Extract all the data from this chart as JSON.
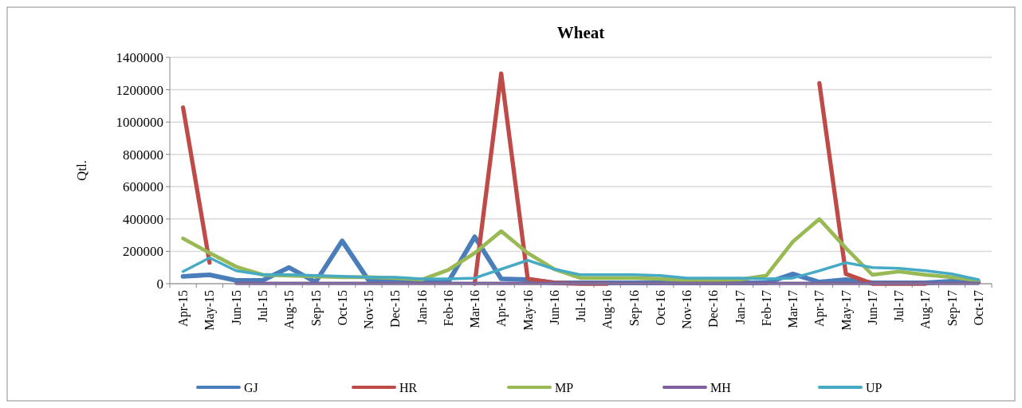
{
  "chart_data": {
    "type": "line",
    "title": "Wheat",
    "ylabel": "Qtl.",
    "categories": [
      "Apr-15",
      "May-15",
      "Jun-15",
      "Jul-15",
      "Aug-15",
      "Sep-15",
      "Oct-15",
      "Nov-15",
      "Dec-15",
      "Jan-16",
      "Feb-16",
      "Mar-16",
      "Apr-16",
      "May-16",
      "Jun-16",
      "Jul-16",
      "Aug-16",
      "Sep-16",
      "Oct-16",
      "Nov-16",
      "Dec-16",
      "Jan-17",
      "Feb-17",
      "Mar-17",
      "Apr-17",
      "May-17",
      "Jun-17",
      "Jul-17",
      "Aug-17",
      "Sep-17",
      "Oct-17"
    ],
    "series": [
      {
        "name": "GJ",
        "color": "#4a7ebb",
        "values": [
          45000,
          55000,
          20000,
          20000,
          100000,
          10000,
          265000,
          20000,
          15000,
          10000,
          10000,
          290000,
          30000,
          25000,
          5000,
          5000,
          5000,
          5000,
          5000,
          5000,
          5000,
          5000,
          5000,
          60000,
          10000,
          25000,
          5000,
          5000,
          5000,
          15000,
          10000
        ]
      },
      {
        "name": "HR",
        "color": "#be4b48",
        "values": [
          1090000,
          130000,
          null,
          null,
          null,
          null,
          null,
          null,
          null,
          null,
          null,
          0,
          1300000,
          30000,
          5000,
          0,
          0,
          null,
          null,
          null,
          null,
          null,
          null,
          null,
          1240000,
          60000,
          0,
          0,
          0,
          null,
          null
        ]
      },
      {
        "name": "MP",
        "color": "#98b954",
        "values": [
          280000,
          190000,
          105000,
          55000,
          50000,
          45000,
          40000,
          40000,
          35000,
          25000,
          85000,
          190000,
          325000,
          190000,
          90000,
          35000,
          35000,
          35000,
          30000,
          20000,
          20000,
          25000,
          50000,
          260000,
          400000,
          220000,
          55000,
          75000,
          55000,
          40000,
          20000
        ]
      },
      {
        "name": "MH",
        "color": "#7d60a0",
        "values": [
          null,
          null,
          2000,
          2000,
          2000,
          2000,
          2000,
          2000,
          2000,
          2000,
          2000,
          2000,
          2000,
          2000,
          2000,
          2000,
          2000,
          2000,
          2000,
          2000,
          2000,
          2000,
          2000,
          2000,
          2000,
          2000,
          2000,
          2000,
          2000,
          2000,
          2000
        ]
      },
      {
        "name": "UP",
        "color": "#46aac5",
        "values": [
          75000,
          160000,
          80000,
          55000,
          55000,
          50000,
          45000,
          40000,
          40000,
          30000,
          30000,
          35000,
          90000,
          145000,
          90000,
          55000,
          55000,
          55000,
          50000,
          35000,
          35000,
          35000,
          30000,
          35000,
          80000,
          130000,
          100000,
          95000,
          80000,
          60000,
          25000
        ]
      }
    ],
    "ylim": [
      0,
      1400000
    ],
    "yticks": [
      0,
      200000,
      400000,
      600000,
      800000,
      1000000,
      1200000,
      1400000
    ],
    "grid": "y",
    "legend": "bottom",
    "marker": "none",
    "line_style": "solid"
  }
}
